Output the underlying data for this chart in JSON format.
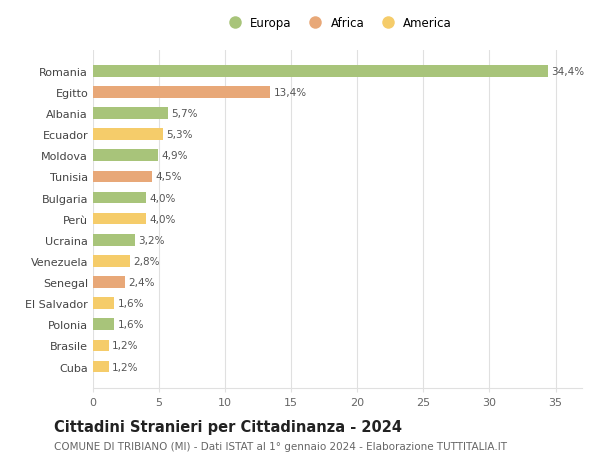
{
  "categories": [
    "Cuba",
    "Brasile",
    "Polonia",
    "El Salvador",
    "Senegal",
    "Venezuela",
    "Ucraina",
    "Perù",
    "Bulgaria",
    "Tunisia",
    "Moldova",
    "Ecuador",
    "Albania",
    "Egitto",
    "Romania"
  ],
  "values": [
    1.2,
    1.2,
    1.6,
    1.6,
    2.4,
    2.8,
    3.2,
    4.0,
    4.0,
    4.5,
    4.9,
    5.3,
    5.7,
    13.4,
    34.4
  ],
  "labels": [
    "1,2%",
    "1,2%",
    "1,6%",
    "1,6%",
    "2,4%",
    "2,8%",
    "3,2%",
    "4,0%",
    "4,0%",
    "4,5%",
    "4,9%",
    "5,3%",
    "5,7%",
    "13,4%",
    "34,4%"
  ],
  "colors": [
    "#f5cc6a",
    "#f5cc6a",
    "#a8c47a",
    "#f5cc6a",
    "#e8a878",
    "#f5cc6a",
    "#a8c47a",
    "#f5cc6a",
    "#a8c47a",
    "#e8a878",
    "#a8c47a",
    "#f5cc6a",
    "#a8c47a",
    "#e8a878",
    "#a8c47a"
  ],
  "legend_labels": [
    "Europa",
    "Africa",
    "America"
  ],
  "legend_colors": [
    "#a8c47a",
    "#e8a878",
    "#f5cc6a"
  ],
  "title": "Cittadini Stranieri per Cittadinanza - 2024",
  "subtitle": "COMUNE DI TRIBIANO (MI) - Dati ISTAT al 1° gennaio 2024 - Elaborazione TUTTITALIA.IT",
  "xlim": [
    0,
    37
  ],
  "xticks": [
    0,
    5,
    10,
    15,
    20,
    25,
    30,
    35
  ],
  "background_color": "#ffffff",
  "grid_color": "#e0e0e0",
  "bar_height": 0.55,
  "title_fontsize": 10.5,
  "subtitle_fontsize": 7.5,
  "label_fontsize": 7.5,
  "tick_fontsize": 8,
  "legend_fontsize": 8.5
}
